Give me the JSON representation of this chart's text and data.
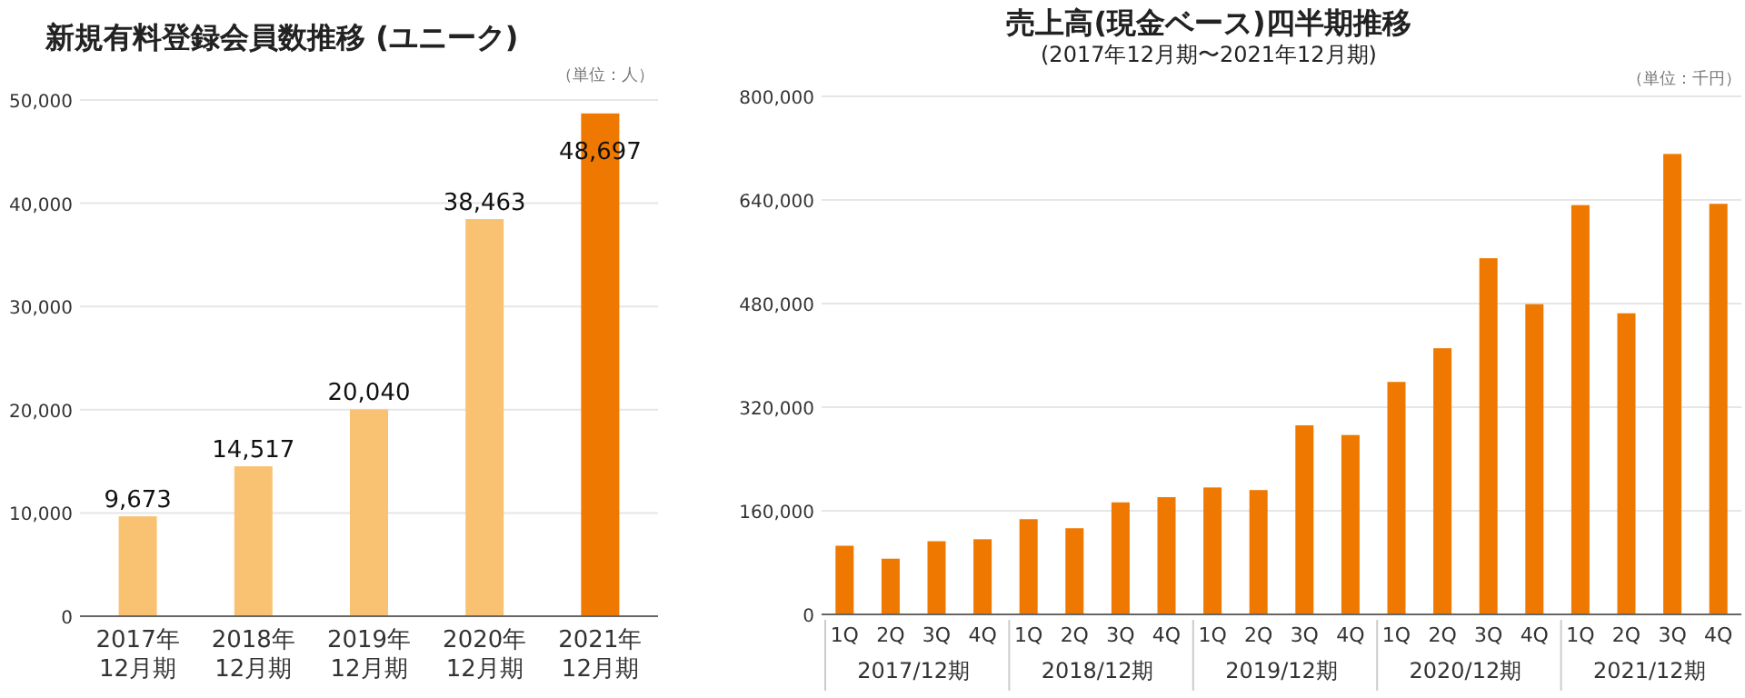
{
  "chart_data": [
    {
      "type": "bar",
      "title": "新規有料登録会員数推移 (ユニーク)",
      "annotations": [
        "（単位：人）"
      ],
      "categories": [
        "2017年\n12月期",
        "2018年\n12月期",
        "2019年\n12月期",
        "2020年\n12月期",
        "2021年\n12月期"
      ],
      "values": [
        9673,
        14517,
        20040,
        38463,
        48697
      ],
      "colors": [
        "#f9c272",
        "#f9c272",
        "#f9c272",
        "#f9c272",
        "#ee7800"
      ],
      "value_labels": [
        "9,673",
        "14,517",
        "20,040",
        "38,463",
        "48,697"
      ],
      "ylim": [
        0,
        50000
      ],
      "yticks": [
        {
          "value": 0,
          "label": "0"
        },
        {
          "value": 10000,
          "label": "10,000"
        },
        {
          "value": 20000,
          "label": "20,000"
        },
        {
          "value": 30000,
          "label": "30,000"
        },
        {
          "value": 40000,
          "label": "40,000"
        },
        {
          "value": 50000,
          "label": "50,000"
        }
      ],
      "grid": "y"
    },
    {
      "type": "bar",
      "title": "売上高(現金ベース)四半期推移",
      "subtitle": "(2017年12月期〜2021年12月期)",
      "annotations": [
        "（単位：千円）",
        "2017/12期",
        "2018/12期",
        "2019/12期",
        "2020/12期",
        "2021/12期"
      ],
      "categories": [
        "1Q",
        "2Q",
        "3Q",
        "4Q",
        "1Q",
        "2Q",
        "3Q",
        "4Q",
        "1Q",
        "2Q",
        "3Q",
        "4Q",
        "1Q",
        "2Q",
        "3Q",
        "4Q",
        "1Q",
        "2Q",
        "3Q",
        "4Q"
      ],
      "values": [
        106000,
        86000,
        113000,
        116000,
        147000,
        133000,
        173000,
        181000,
        196000,
        192000,
        292000,
        277000,
        359000,
        411000,
        550000,
        479000,
        632000,
        465000,
        711000,
        634000
      ],
      "color": "#ee7800",
      "ylim": [
        0,
        800000
      ],
      "yticks": [
        {
          "value": 0,
          "label": "0"
        },
        {
          "value": 160000,
          "label": "160,000"
        },
        {
          "value": 320000,
          "label": "320,000"
        },
        {
          "value": 480000,
          "label": "480,000"
        },
        {
          "value": 640000,
          "label": "640,000"
        },
        {
          "value": 800000,
          "label": "800,000"
        }
      ],
      "grid": "y"
    }
  ]
}
